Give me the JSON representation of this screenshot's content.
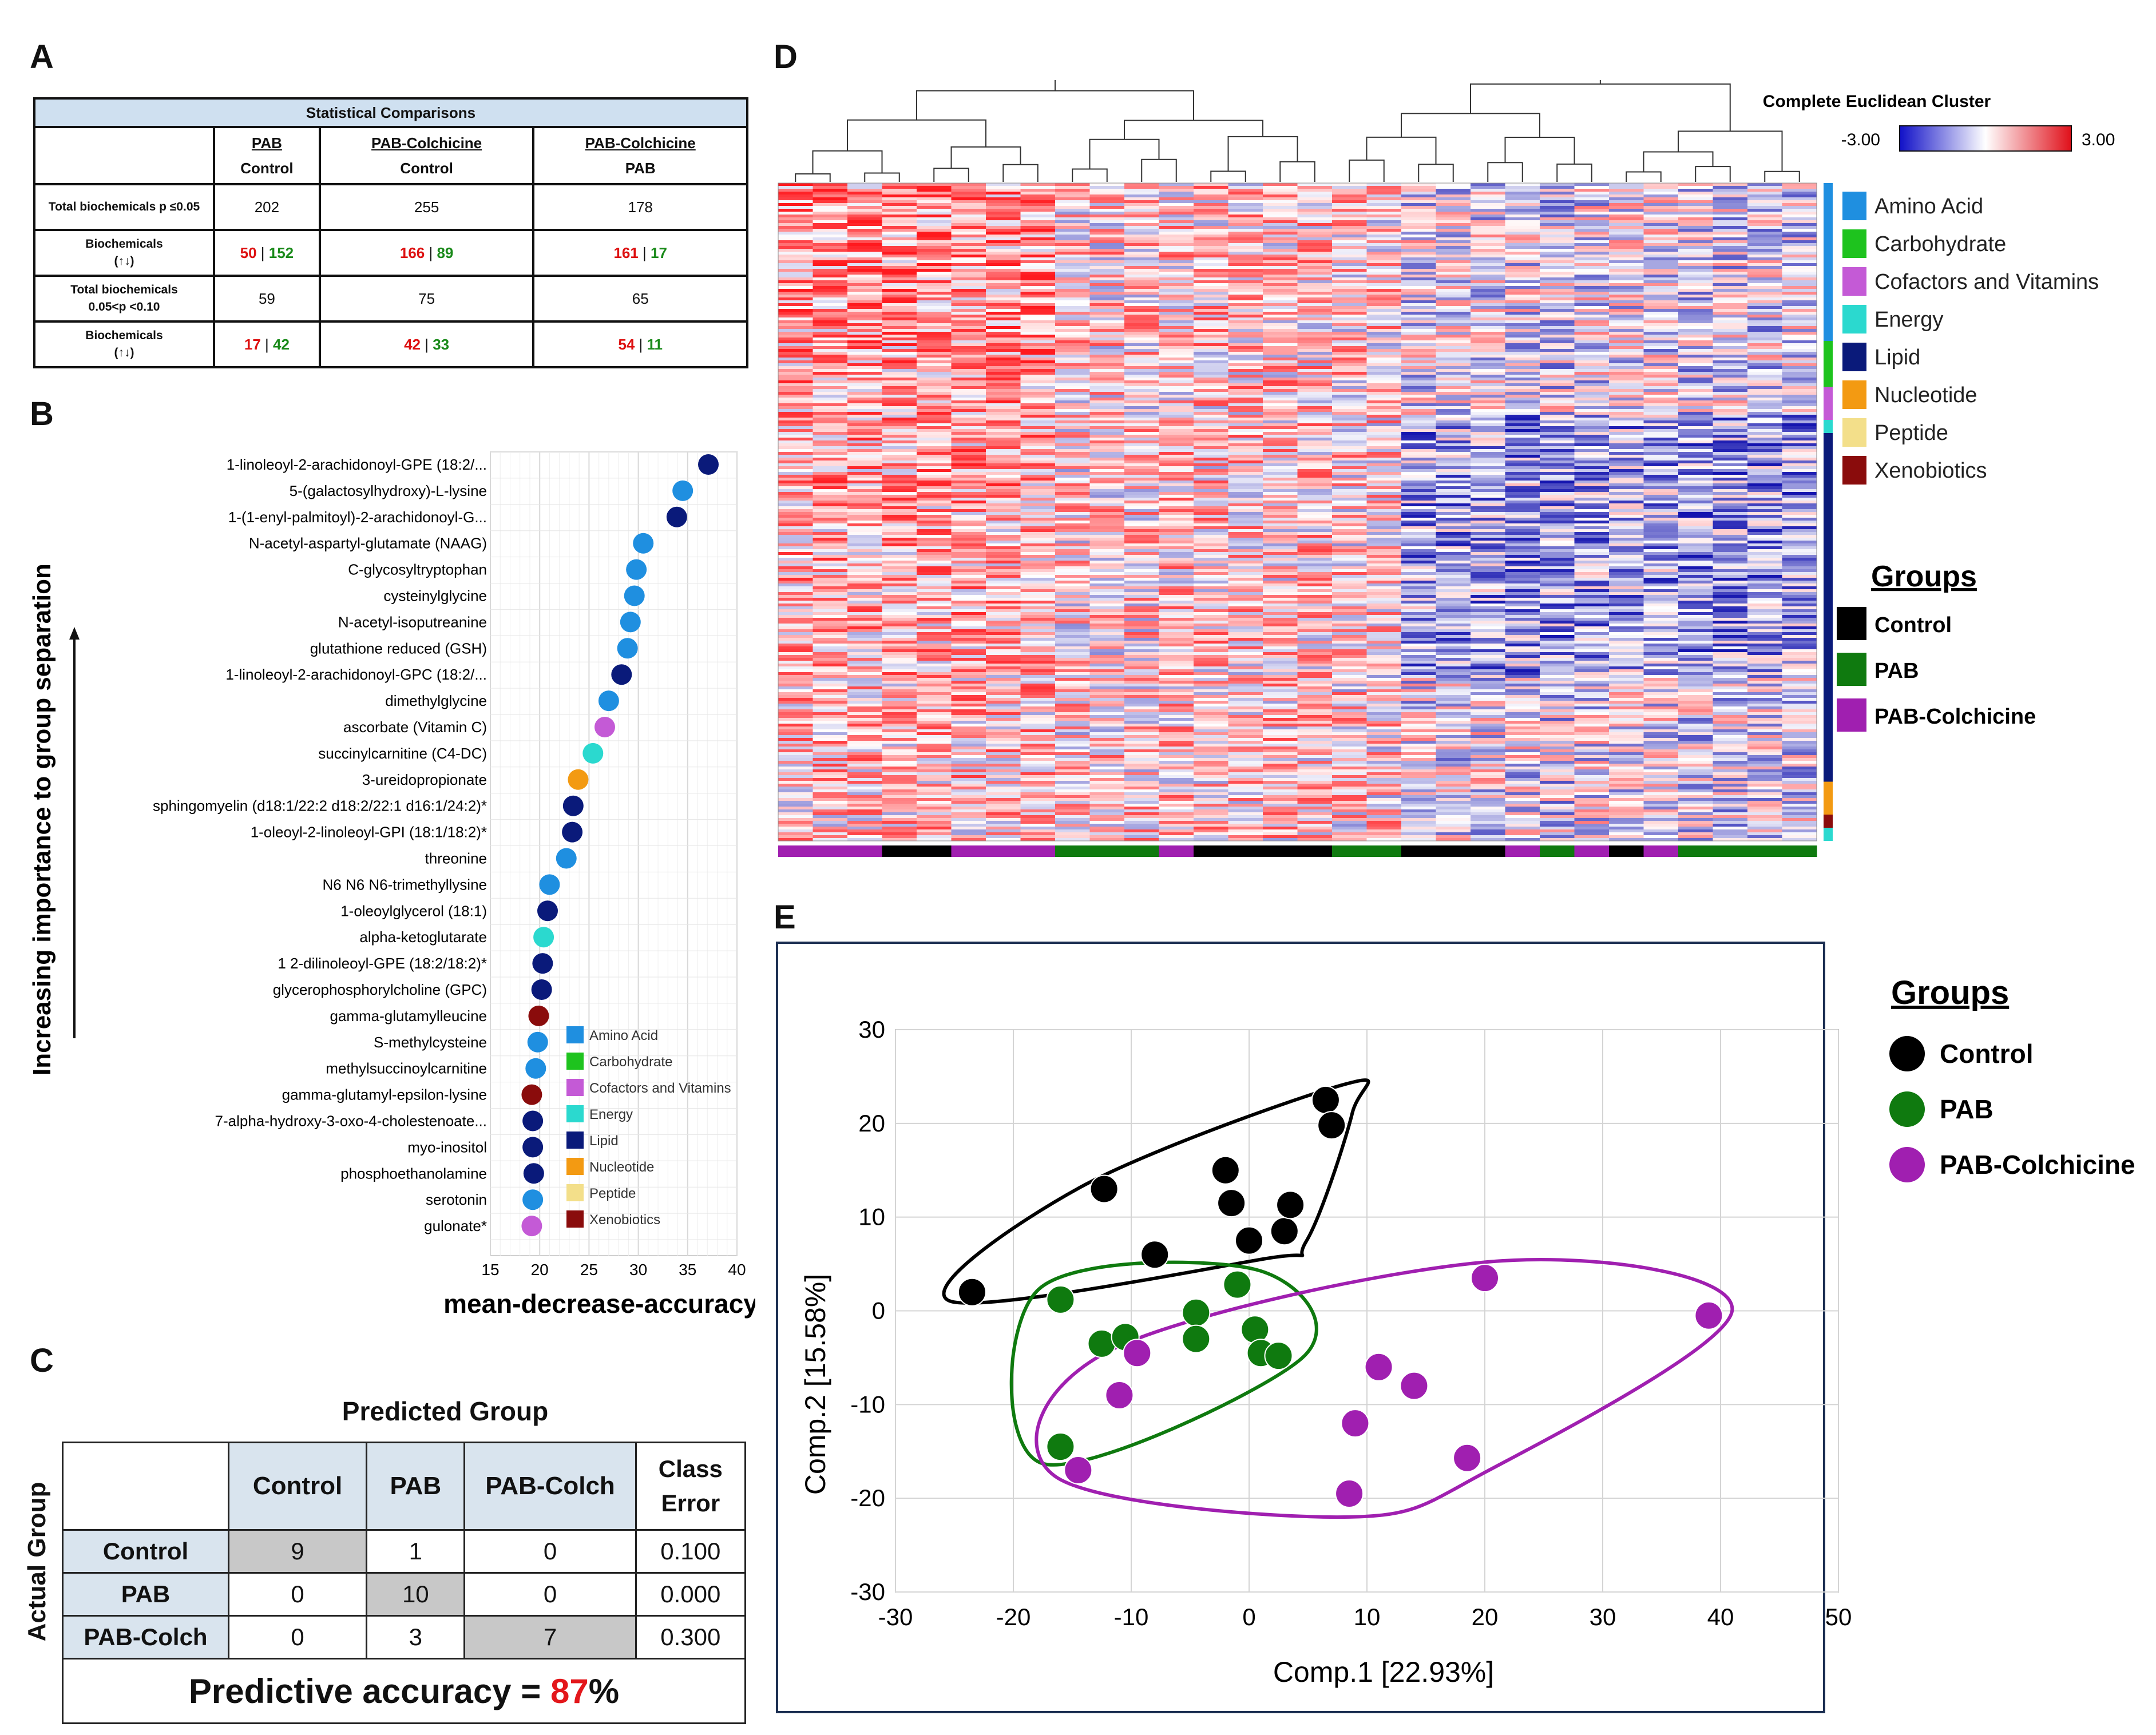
{
  "panel_labels": {
    "a": "A",
    "b": "B",
    "c": "C",
    "d": "D",
    "e": "E"
  },
  "panel_a": {
    "title": "Statistical Comparisons",
    "columns": [
      {
        "top": "PAB",
        "bottom": "Control"
      },
      {
        "top": "PAB-Colchicine",
        "bottom": "Control"
      },
      {
        "top": "PAB-Colchicine",
        "bottom": "PAB"
      }
    ],
    "rows": [
      {
        "label": "Total biochemicals p ≤0.05",
        "values": [
          "202",
          "255",
          "178"
        ]
      },
      {
        "label": "Biochemicals",
        "sublabel": "(↑↓)",
        "up": [
          "50",
          "166",
          "161"
        ],
        "down": [
          "152",
          "89",
          "17"
        ]
      },
      {
        "label": "Total biochemicals",
        "sublabel": "0.05<p <0.10",
        "values": [
          "59",
          "75",
          "65"
        ]
      },
      {
        "label": "Biochemicals",
        "sublabel": "(↑↓)",
        "up": [
          "17",
          "42",
          "54"
        ],
        "down": [
          "42",
          "33",
          "11"
        ]
      }
    ],
    "sep": " | "
  },
  "chart_data": [
    {
      "panel": "B",
      "type": "scatter",
      "title": "",
      "xlabel": "mean-decrease-accuracy",
      "ylabel": "Increasing importance to group separation",
      "xlim": [
        15,
        40
      ],
      "xticks": [
        "15",
        "20",
        "25",
        "30",
        "35",
        "40"
      ],
      "category_colors": {
        "Amino Acid": "#1f8fe0",
        "Carbohydrate": "#1ec31e",
        "Cofactors and Vitamins": "#c45ad6",
        "Energy": "#2bd9cf",
        "Lipid": "#0a1a7a",
        "Nucleotide": "#f39a12",
        "Peptide": "#f3df8a",
        "Xenobiotics": "#8a0c0c"
      },
      "legend": [
        "Amino Acid",
        "Carbohydrate",
        "Cofactors and Vitamins",
        "Energy",
        "Lipid",
        "Nucleotide",
        "Peptide",
        "Xenobiotics"
      ],
      "points": [
        {
          "name": "1-linoleoyl-2-arachidonoyl-GPE (18:2/...",
          "value": 37.1,
          "category": "Lipid"
        },
        {
          "name": "5-(galactosylhydroxy)-L-lysine",
          "value": 34.5,
          "category": "Amino Acid"
        },
        {
          "name": "1-(1-enyl-palmitoyl)-2-arachidonoyl-G...",
          "value": 33.9,
          "category": "Lipid"
        },
        {
          "name": "N-acetyl-aspartyl-glutamate (NAAG)",
          "value": 30.5,
          "category": "Amino Acid"
        },
        {
          "name": "C-glycosyltryptophan",
          "value": 29.8,
          "category": "Amino Acid"
        },
        {
          "name": "cysteinylglycine",
          "value": 29.6,
          "category": "Amino Acid"
        },
        {
          "name": "N-acetyl-isoputreanine",
          "value": 29.2,
          "category": "Amino Acid"
        },
        {
          "name": "glutathione reduced (GSH)",
          "value": 28.9,
          "category": "Amino Acid"
        },
        {
          "name": "1-linoleoyl-2-arachidonoyl-GPC (18:2/...",
          "value": 28.3,
          "category": "Lipid"
        },
        {
          "name": "dimethylglycine",
          "value": 27.0,
          "category": "Amino Acid"
        },
        {
          "name": "ascorbate (Vitamin C)",
          "value": 26.6,
          "category": "Cofactors and Vitamins"
        },
        {
          "name": "succinylcarnitine (C4-DC)",
          "value": 25.4,
          "category": "Energy"
        },
        {
          "name": "3-ureidopropionate",
          "value": 23.9,
          "category": "Nucleotide"
        },
        {
          "name": "sphingomyelin (d18:1/22:2 d18:2/22:1 d16:1/24:2)*",
          "value": 23.4,
          "category": "Lipid"
        },
        {
          "name": "1-oleoyl-2-linoleoyl-GPI (18:1/18:2)*",
          "value": 23.3,
          "category": "Lipid"
        },
        {
          "name": "threonine",
          "value": 22.7,
          "category": "Amino Acid"
        },
        {
          "name": "N6 N6 N6-trimethyllysine",
          "value": 21.0,
          "category": "Amino Acid"
        },
        {
          "name": "1-oleoylglycerol (18:1)",
          "value": 20.8,
          "category": "Lipid"
        },
        {
          "name": "alpha-ketoglutarate",
          "value": 20.4,
          "category": "Energy"
        },
        {
          "name": "1 2-dilinoleoyl-GPE (18:2/18:2)*",
          "value": 20.3,
          "category": "Lipid"
        },
        {
          "name": "glycerophosphorylcholine (GPC)",
          "value": 20.2,
          "category": "Lipid"
        },
        {
          "name": "gamma-glutamylleucine",
          "value": 19.9,
          "category": "Xenobiotics"
        },
        {
          "name": "S-methylcysteine",
          "value": 19.8,
          "category": "Amino Acid"
        },
        {
          "name": "methylsuccinoylcarnitine",
          "value": 19.6,
          "category": "Amino Acid"
        },
        {
          "name": "gamma-glutamyl-epsilon-lysine",
          "value": 19.2,
          "category": "Xenobiotics"
        },
        {
          "name": "7-alpha-hydroxy-3-oxo-4-cholestenoate...",
          "value": 19.3,
          "category": "Lipid"
        },
        {
          "name": "myo-inositol",
          "value": 19.3,
          "category": "Lipid"
        },
        {
          "name": "phosphoethanolamine",
          "value": 19.4,
          "category": "Lipid"
        },
        {
          "name": "serotonin",
          "value": 19.3,
          "category": "Amino Acid"
        },
        {
          "name": "gulonate*",
          "value": 19.2,
          "category": "Cofactors and Vitamins"
        }
      ]
    },
    {
      "panel": "D",
      "type": "heatmap",
      "title": "Complete Euclidean Cluster",
      "scale_min": "-3.00",
      "scale_max": "3.00",
      "category_legend": [
        "Amino Acid",
        "Carbohydrate",
        "Cofactors and Vitamins",
        "Energy",
        "Lipid",
        "Nucleotide",
        "Peptide",
        "Xenobiotics"
      ],
      "groups_title": "Groups",
      "groups": [
        {
          "name": "Control",
          "color": "#000000"
        },
        {
          "name": "PAB",
          "color": "#0f7a0f"
        },
        {
          "name": "PAB-Colchicine",
          "color": "#a01fb0"
        }
      ],
      "column_groups": [
        "PAB-Colchicine",
        "PAB-Colchicine",
        "PAB-Colchicine",
        "Control",
        "Control",
        "PAB-Colchicine",
        "PAB-Colchicine",
        "PAB-Colchicine",
        "PAB",
        "PAB",
        "PAB",
        "PAB-Colchicine",
        "Control",
        "Control",
        "Control",
        "Control",
        "PAB",
        "PAB",
        "Control",
        "Control",
        "Control",
        "PAB-Colchicine",
        "PAB",
        "PAB-Colchicine",
        "Control",
        "PAB-Colchicine",
        "PAB",
        "PAB",
        "PAB",
        "PAB"
      ],
      "row_categories": [
        {
          "category": "Amino Acid",
          "fraction": 0.24
        },
        {
          "category": "Carbohydrate",
          "fraction": 0.07
        },
        {
          "category": "Cofactors and Vitamins",
          "fraction": 0.05
        },
        {
          "category": "Energy",
          "fraction": 0.02
        },
        {
          "category": "Lipid",
          "fraction": 0.53
        },
        {
          "category": "Nucleotide",
          "fraction": 0.05
        },
        {
          "category": "Xenobiotics",
          "fraction": 0.02
        },
        {
          "category": "Energy",
          "fraction": 0.02
        }
      ]
    },
    {
      "panel": "E",
      "type": "scatter",
      "xlabel": "Comp.1 [22.93%]",
      "ylabel": "Comp.2 [15.58%]",
      "xlim": [
        -30,
        50
      ],
      "ylim": [
        -30,
        30
      ],
      "xticks": [
        "-30",
        "-20",
        "-10",
        "0",
        "10",
        "20",
        "30",
        "40",
        "50"
      ],
      "yticks": [
        "30",
        "20",
        "10",
        "0",
        "-10",
        "-20",
        "-30"
      ],
      "legend_title": "Groups",
      "series": [
        {
          "name": "Control",
          "color": "#000000",
          "points": [
            [
              -23.5,
              2
            ],
            [
              -12.3,
              13
            ],
            [
              -8,
              6
            ],
            [
              -2,
              15
            ],
            [
              -1.5,
              11.5
            ],
            [
              0,
              7.5
            ],
            [
              3,
              8.5
            ],
            [
              3.5,
              11.3
            ],
            [
              6.5,
              22.5
            ],
            [
              7,
              19.8
            ]
          ]
        },
        {
          "name": "PAB",
          "color": "#0f7a0f",
          "points": [
            [
              -16,
              1.2
            ],
            [
              -12.5,
              -3.5
            ],
            [
              -10.5,
              -2.8
            ],
            [
              -4.5,
              -0.2
            ],
            [
              -4.5,
              -3
            ],
            [
              -1,
              2.8
            ],
            [
              0.5,
              -2
            ],
            [
              1,
              -4.5
            ],
            [
              2.5,
              -4.8
            ],
            [
              -16,
              -14.5
            ]
          ]
        },
        {
          "name": "PAB-Colchicine",
          "color": "#a01fb0",
          "points": [
            [
              -9.5,
              -4.5
            ],
            [
              -11,
              -9
            ],
            [
              -14.5,
              -17
            ],
            [
              9,
              -12
            ],
            [
              8.5,
              -19.5
            ],
            [
              11,
              -6
            ],
            [
              14,
              -8
            ],
            [
              18.5,
              -15.7
            ],
            [
              20,
              3.5
            ],
            [
              39,
              -0.5
            ]
          ]
        }
      ]
    }
  ],
  "panel_c": {
    "predicted_label": "Predicted Group",
    "actual_label": "Actual Group",
    "columns": [
      "Control",
      "PAB",
      "PAB-Colch",
      "Class Error"
    ],
    "rows": [
      {
        "label": "Control",
        "values": [
          "9",
          "1",
          "0",
          "0.100"
        ]
      },
      {
        "label": "PAB",
        "values": [
          "0",
          "10",
          "0",
          "0.000"
        ]
      },
      {
        "label": "PAB-Colch",
        "values": [
          "0",
          "3",
          "7",
          "0.300"
        ]
      }
    ],
    "accuracy_label": "Predictive accuracy = ",
    "accuracy_value": "87",
    "accuracy_unit": "%"
  }
}
